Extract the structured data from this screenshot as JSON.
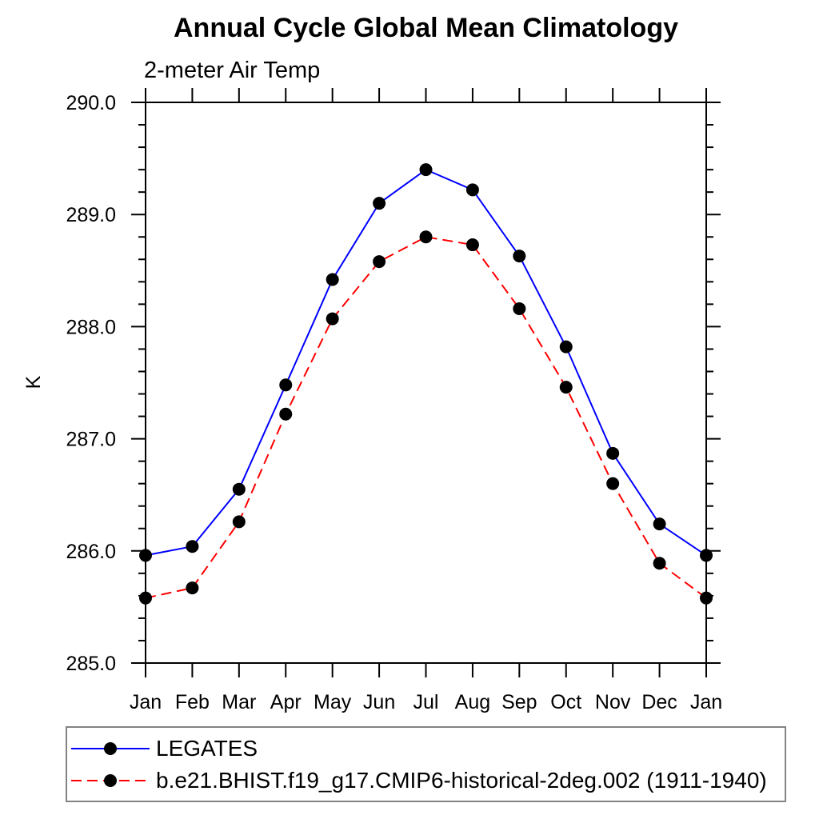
{
  "chart_data": {
    "type": "line",
    "title": "Annual Cycle Global Mean Climatology",
    "subtitle": "2-meter Air Temp",
    "ylabel": "K",
    "xlabel": "",
    "categories": [
      "Jan",
      "Feb",
      "Mar",
      "Apr",
      "May",
      "Jun",
      "Jul",
      "Aug",
      "Sep",
      "Oct",
      "Nov",
      "Dec",
      "Jan"
    ],
    "ylim": [
      285.0,
      290.0
    ],
    "y_major_tick_interval": 1.0,
    "y_minor_tick_interval": 0.2,
    "y_tick_labels": [
      "285.0",
      "286.0",
      "287.0",
      "288.0",
      "289.0",
      "290.0"
    ],
    "grid": false,
    "legend_position": "bottom",
    "axis_color": "#000000",
    "series": [
      {
        "name": "LEGATES",
        "color": "#0000ff",
        "line_style": "solid",
        "marker": "filled-circle",
        "marker_color": "#000000",
        "values": [
          285.96,
          286.04,
          286.55,
          287.48,
          288.42,
          289.1,
          289.4,
          289.22,
          288.63,
          287.82,
          286.87,
          286.24,
          285.96
        ]
      },
      {
        "name": "b.e21.BHIST.f19_g17.CMIP6-historical-2deg.002 (1911-1940)",
        "color": "#ff0000",
        "line_style": "dashed",
        "marker": "filled-circle",
        "marker_color": "#000000",
        "values": [
          285.58,
          285.67,
          286.26,
          287.22,
          288.07,
          288.58,
          288.8,
          288.73,
          288.16,
          287.46,
          286.6,
          285.89,
          285.58
        ]
      }
    ]
  }
}
